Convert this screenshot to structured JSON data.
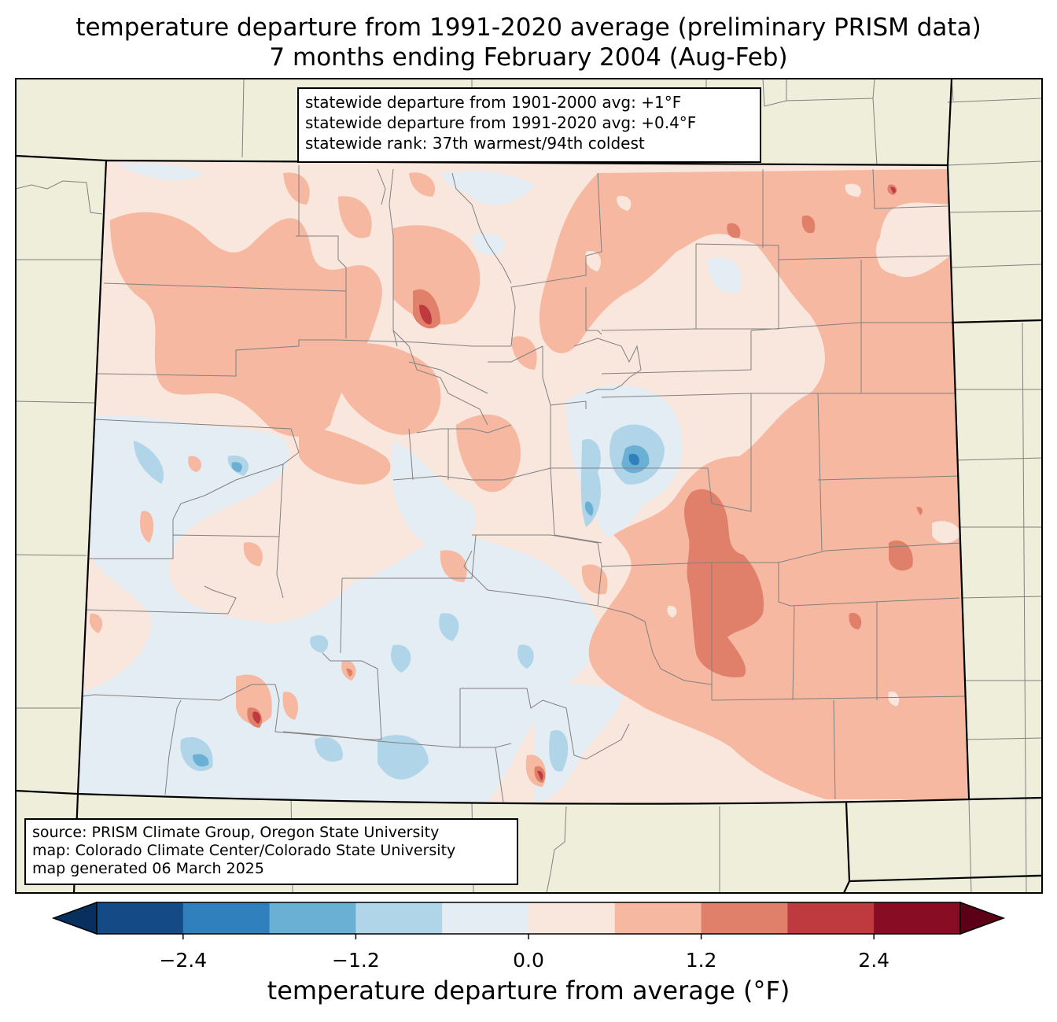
{
  "title": {
    "line1": "temperature departure from 1991-2020 average (preliminary PRISM data)",
    "line2": "7 months ending February 2004 (Aug-Feb)"
  },
  "stats": {
    "line1": "statewide departure from 1901-2000 avg: +1°F",
    "line2": "statewide departure from 1991-2020 avg: +0.4°F",
    "line3": "statewide rank: 37th warmest/94th coldest"
  },
  "source": {
    "line1": "source: PRISM Climate Group, Oregon State University",
    "line2": "map: Colorado Climate Center/Colorado State University",
    "line3": "map generated 06 March 2025"
  },
  "colorbar": {
    "label": "temperature departure from average (°F)",
    "ticks": [
      "−2.4",
      "−1.2",
      "0.0",
      "1.2",
      "2.4"
    ],
    "bins": [
      {
        "from": -3.0,
        "to": -2.4,
        "color": "#144b87"
      },
      {
        "from": -2.4,
        "to": -1.8,
        "color": "#3080be"
      },
      {
        "from": -1.8,
        "to": -1.2,
        "color": "#6aafd4"
      },
      {
        "from": -1.2,
        "to": -0.6,
        "color": "#b1d5e8"
      },
      {
        "from": -0.6,
        "to": 0.0,
        "color": "#e5edf4"
      },
      {
        "from": 0.0,
        "to": 0.6,
        "color": "#f9e7de"
      },
      {
        "from": 0.6,
        "to": 1.2,
        "color": "#f6b8a0"
      },
      {
        "from": 1.2,
        "to": 1.8,
        "color": "#e07f6a"
      },
      {
        "from": 1.8,
        "to": 2.4,
        "color": "#be3a3e"
      },
      {
        "from": 2.4,
        "to": 3.0,
        "color": "#870c24"
      }
    ],
    "under_color": "#07305e",
    "over_color": "#5c0018"
  },
  "colors": {
    "land": "#efeedb",
    "state_border": "#000000",
    "county_border": "#808080"
  }
}
